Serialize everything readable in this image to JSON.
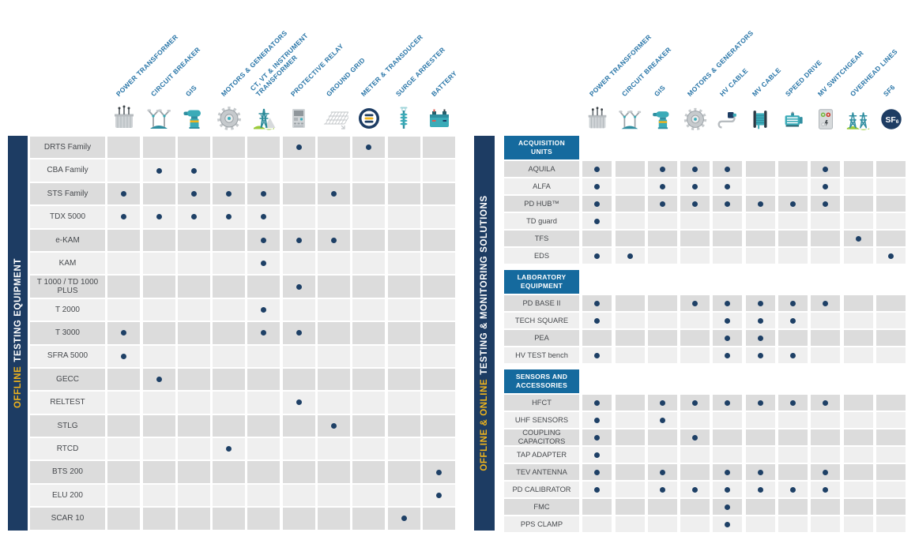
{
  "colors": {
    "navy": "#1d3c63",
    "accent_yellow": "#f0b41c",
    "section_header_blue": "#156a9e",
    "column_header_text": "#2a76a8",
    "row_dark": "#dcdcdc",
    "row_light": "#efefef",
    "dot": "#1e4066",
    "icon_teal": "#3aabb8",
    "icon_green": "#9ccb3b"
  },
  "left_panel": {
    "banner": {
      "highlight": "OFFLINE",
      "rest": "TESTING EQUIPMENT"
    },
    "columns": [
      {
        "label": "POWER TRANSFORMER",
        "icon": "power-transformer"
      },
      {
        "label": "CIRCUIT BREAKER",
        "icon": "circuit-breaker"
      },
      {
        "label": "GIS",
        "icon": "gis"
      },
      {
        "label": "MOTORS & GENERATORS",
        "icon": "motors-generators"
      },
      {
        "label": "CT, VT & INSTRUMENT\nTRANSFORMER",
        "icon": "instrument-transformer"
      },
      {
        "label": "PROTECTIVE RELAY",
        "icon": "protective-relay"
      },
      {
        "label": "GROUND GRID",
        "icon": "ground-grid"
      },
      {
        "label": "METER & TRANSDUCER",
        "icon": "meter-transducer"
      },
      {
        "label": "SURGE ARRESTER",
        "icon": "surge-arrester"
      },
      {
        "label": "BATTERY",
        "icon": "battery"
      }
    ],
    "rows": [
      {
        "label": "DRTS Family",
        "dots": [
          6,
          8
        ]
      },
      {
        "label": "CBA Family",
        "dots": [
          2,
          3
        ]
      },
      {
        "label": "STS Family",
        "dots": [
          1,
          3,
          4,
          5,
          7
        ]
      },
      {
        "label": "TDX 5000",
        "dots": [
          1,
          2,
          3,
          4,
          5
        ]
      },
      {
        "label": "e-KAM",
        "dots": [
          5,
          6,
          7
        ]
      },
      {
        "label": "KAM",
        "dots": [
          5
        ]
      },
      {
        "label": "T 1000 / TD 1000 PLUS",
        "dots": [
          6
        ]
      },
      {
        "label": "T 2000",
        "dots": [
          5
        ]
      },
      {
        "label": "T 3000",
        "dots": [
          1,
          5,
          6
        ]
      },
      {
        "label": "SFRA 5000",
        "dots": [
          1
        ]
      },
      {
        "label": "GECC",
        "dots": [
          2
        ]
      },
      {
        "label": "RELTEST",
        "dots": [
          6
        ]
      },
      {
        "label": "STLG",
        "dots": [
          7
        ]
      },
      {
        "label": "RTCD",
        "dots": [
          4
        ]
      },
      {
        "label": "BTS 200",
        "dots": [
          10
        ]
      },
      {
        "label": "ELU 200",
        "dots": [
          10
        ]
      },
      {
        "label": "SCAR 10",
        "dots": [
          9
        ]
      }
    ]
  },
  "right_panel": {
    "banner": {
      "highlight": "OFFLINE & ONLINE",
      "rest": "TESTING & MONITORING SOLUTIONS"
    },
    "columns": [
      {
        "label": "POWER TRANSFORMER",
        "icon": "power-transformer"
      },
      {
        "label": "CIRCUIT BREAKER",
        "icon": "circuit-breaker"
      },
      {
        "label": "GIS",
        "icon": "gis"
      },
      {
        "label": "MOTORS & GENERATORS",
        "icon": "motors-generators"
      },
      {
        "label": "HV CABLE",
        "icon": "hv-cable"
      },
      {
        "label": "MV CABLE",
        "icon": "mv-cable"
      },
      {
        "label": "SPEED DRIVE",
        "icon": "speed-drive"
      },
      {
        "label": "MV SWITCHGEAR",
        "icon": "mv-switchgear"
      },
      {
        "label": "OVERHEAD LINES",
        "icon": "overhead-lines"
      },
      {
        "label": "SF6",
        "icon": "sf6"
      }
    ],
    "sections": [
      {
        "title": "ACQUISITION\nUNITS",
        "rows": [
          {
            "label": "AQUILA",
            "dots": [
              1,
              3,
              4,
              5,
              8
            ]
          },
          {
            "label": "ALFA",
            "dots": [
              1,
              3,
              4,
              5,
              8
            ]
          },
          {
            "label": "PD HUB™",
            "dots": [
              1,
              3,
              4,
              5,
              6,
              7,
              8
            ]
          },
          {
            "label": "TD guard",
            "dots": [
              1
            ]
          },
          {
            "label": "TFS",
            "dots": [
              9
            ]
          },
          {
            "label": "EDS",
            "dots": [
              1,
              2,
              10
            ]
          }
        ]
      },
      {
        "title": "LABORATORY\nEQUIPMENT",
        "rows": [
          {
            "label": "PD BASE II",
            "dots": [
              1,
              4,
              5,
              6,
              7,
              8
            ]
          },
          {
            "label": "TECH SQUARE",
            "dots": [
              1,
              5,
              6,
              7
            ]
          },
          {
            "label": "PEA",
            "dots": [
              5,
              6
            ]
          },
          {
            "label": "HV TEST bench",
            "dots": [
              1,
              5,
              6,
              7
            ]
          }
        ]
      },
      {
        "title": "SENSORS AND\nACCESSORIES",
        "rows": [
          {
            "label": "HFCT",
            "dots": [
              1,
              3,
              4,
              5,
              6,
              7,
              8
            ]
          },
          {
            "label": "UHF SENSORS",
            "dots": [
              1,
              3
            ]
          },
          {
            "label": "COUPLING CAPACITORS",
            "dots": [
              1,
              4
            ]
          },
          {
            "label": "TAP ADAPTER",
            "dots": [
              1
            ]
          },
          {
            "label": "TEV ANTENNA",
            "dots": [
              1,
              3,
              5,
              6,
              8
            ]
          },
          {
            "label": "PD CALIBRATOR",
            "dots": [
              1,
              3,
              4,
              5,
              6,
              7,
              8
            ]
          },
          {
            "label": "FMC",
            "dots": [
              5
            ]
          },
          {
            "label": "PPS CLAMP",
            "dots": [
              5
            ]
          }
        ]
      }
    ]
  }
}
